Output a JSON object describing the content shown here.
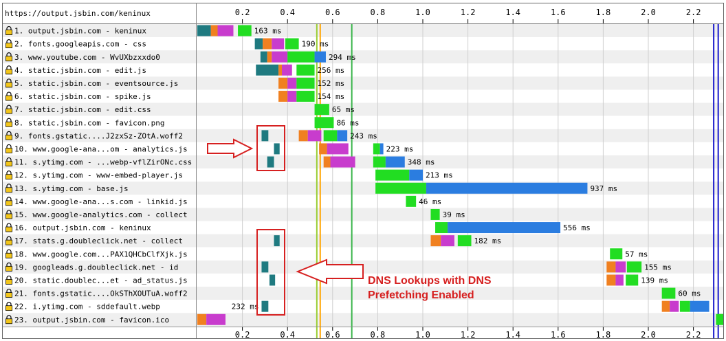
{
  "page_url": "https://output.jsbin.com/keninux",
  "chart_data": {
    "type": "waterfall",
    "x_unit": "s",
    "xlim": [
      0,
      2.3
    ],
    "x_ticks": [
      "0.2",
      "0.4",
      "0.6",
      "0.8",
      "1.0",
      "1.2",
      "1.4",
      "1.6",
      "1.8",
      "2.0",
      "2.2"
    ],
    "phase_colors": {
      "dns": "#1f7a80",
      "connect": "#f08020",
      "ssl": "#c83ccd",
      "ttfb": "#22dd22",
      "download": "#2b7de0"
    },
    "markers": [
      {
        "name": "start-render",
        "x": 0.53,
        "color": "#9acd32"
      },
      {
        "name": "dom-content-loaded",
        "x": 0.545,
        "color": "#ffa500"
      },
      {
        "name": "dom-interactive",
        "x": 0.685,
        "color": "#39b54a"
      },
      {
        "name": "document-complete",
        "x": 2.29,
        "color": "#1a1acc"
      },
      {
        "name": "fully-loaded",
        "x": 2.31,
        "color": "#1a1acc"
      }
    ],
    "requests": [
      {
        "label": "1. output.jsbin.com - keninux",
        "time": "163 ms",
        "phases": [
          {
            "t": "dns",
            "s": 0.0,
            "e": 0.06
          },
          {
            "t": "connect",
            "s": 0.06,
            "e": 0.09
          },
          {
            "t": "ssl",
            "s": 0.09,
            "e": 0.16
          },
          {
            "t": "ttfb",
            "s": 0.18,
            "e": 0.24
          }
        ]
      },
      {
        "label": "2. fonts.googleapis.com - css",
        "time": "190 ms",
        "phases": [
          {
            "t": "dns",
            "s": 0.255,
            "e": 0.29
          },
          {
            "t": "connect",
            "s": 0.29,
            "e": 0.33
          },
          {
            "t": "ssl",
            "s": 0.33,
            "e": 0.385
          },
          {
            "t": "ttfb",
            "s": 0.39,
            "e": 0.45
          }
        ]
      },
      {
        "label": "3. www.youtube.com - WvUXbzxxdo0",
        "time": "294 ms",
        "phases": [
          {
            "t": "dns",
            "s": 0.28,
            "e": 0.31
          },
          {
            "t": "connect",
            "s": 0.31,
            "e": 0.33
          },
          {
            "t": "ssl",
            "s": 0.33,
            "e": 0.4
          },
          {
            "t": "ttfb",
            "s": 0.4,
            "e": 0.52
          },
          {
            "t": "download",
            "s": 0.52,
            "e": 0.57
          }
        ]
      },
      {
        "label": "4. static.jsbin.com - edit.js",
        "time": "256 ms",
        "phases": [
          {
            "t": "dns",
            "s": 0.26,
            "e": 0.36
          },
          {
            "t": "connect",
            "s": 0.36,
            "e": 0.375
          },
          {
            "t": "ssl",
            "s": 0.375,
            "e": 0.42
          },
          {
            "t": "ttfb",
            "s": 0.44,
            "e": 0.52
          }
        ]
      },
      {
        "label": "5. static.jsbin.com - eventsource.js",
        "time": "152 ms",
        "phases": [
          {
            "t": "connect",
            "s": 0.36,
            "e": 0.4
          },
          {
            "t": "ssl",
            "s": 0.4,
            "e": 0.44
          },
          {
            "t": "ttfb",
            "s": 0.44,
            "e": 0.52
          }
        ]
      },
      {
        "label": "6. static.jsbin.com - spike.js",
        "time": "154 ms",
        "phases": [
          {
            "t": "connect",
            "s": 0.36,
            "e": 0.4
          },
          {
            "t": "ssl",
            "s": 0.4,
            "e": 0.44
          },
          {
            "t": "ttfb",
            "s": 0.44,
            "e": 0.52
          }
        ]
      },
      {
        "label": "7. static.jsbin.com - edit.css",
        "time": "65 ms",
        "phases": [
          {
            "t": "ttfb",
            "s": 0.52,
            "e": 0.585
          }
        ]
      },
      {
        "label": "8. static.jsbin.com - favicon.png",
        "time": "86 ms",
        "phases": [
          {
            "t": "ttfb",
            "s": 0.52,
            "e": 0.605
          }
        ]
      },
      {
        "label": "9. fonts.gstatic....J2zxSz-ZOtA.woff2",
        "time": "243 ms",
        "phases": [
          {
            "t": "dns",
            "s": 0.285,
            "e": 0.315
          },
          {
            "t": "connect",
            "s": 0.45,
            "e": 0.49
          },
          {
            "t": "ssl",
            "s": 0.49,
            "e": 0.55
          },
          {
            "t": "ttfb",
            "s": 0.56,
            "e": 0.62
          },
          {
            "t": "download",
            "s": 0.62,
            "e": 0.665
          }
        ]
      },
      {
        "label": "10. www.google-ana...om - analytics.js",
        "time": "223 ms",
        "phases": [
          {
            "t": "dns",
            "s": 0.34,
            "e": 0.365
          },
          {
            "t": "connect",
            "s": 0.54,
            "e": 0.575
          },
          {
            "t": "ssl",
            "s": 0.575,
            "e": 0.67
          },
          {
            "t": "ttfb",
            "s": 0.78,
            "e": 0.81
          },
          {
            "t": "download",
            "s": 0.81,
            "e": 0.825
          }
        ]
      },
      {
        "label": "11. s.ytimg.com - ...webp-vflZirONc.css",
        "time": "348 ms",
        "phases": [
          {
            "t": "dns",
            "s": 0.31,
            "e": 0.34
          },
          {
            "t": "connect",
            "s": 0.56,
            "e": 0.59
          },
          {
            "t": "ssl",
            "s": 0.59,
            "e": 0.7
          },
          {
            "t": "ttfb",
            "s": 0.78,
            "e": 0.835
          },
          {
            "t": "download",
            "s": 0.835,
            "e": 0.92
          }
        ]
      },
      {
        "label": "12. s.ytimg.com - www-embed-player.js",
        "time": "213 ms",
        "phases": [
          {
            "t": "ttfb",
            "s": 0.79,
            "e": 0.94
          },
          {
            "t": "download",
            "s": 0.94,
            "e": 1.0
          }
        ]
      },
      {
        "label": "13. s.ytimg.com - base.js",
        "time": "937 ms",
        "phases": [
          {
            "t": "ttfb",
            "s": 0.79,
            "e": 1.015
          },
          {
            "t": "download",
            "s": 1.015,
            "e": 1.73
          }
        ]
      },
      {
        "label": "14. www.google-ana...s.com - linkid.js",
        "time": "46 ms",
        "phases": [
          {
            "t": "ttfb",
            "s": 0.925,
            "e": 0.97
          }
        ]
      },
      {
        "label": "15. www.google-analytics.com - collect",
        "time": "39 ms",
        "phases": [
          {
            "t": "ttfb",
            "s": 1.035,
            "e": 1.075
          }
        ]
      },
      {
        "label": "16. output.jsbin.com - keninux",
        "time": "556 ms",
        "phases": [
          {
            "t": "ttfb",
            "s": 1.055,
            "e": 1.11
          },
          {
            "t": "download",
            "s": 1.11,
            "e": 1.61
          }
        ]
      },
      {
        "label": "17. stats.g.doubleclick.net - collect",
        "time": "182 ms",
        "phases": [
          {
            "t": "dns",
            "s": 0.34,
            "e": 0.365
          },
          {
            "t": "connect",
            "s": 1.035,
            "e": 1.08
          },
          {
            "t": "ssl",
            "s": 1.08,
            "e": 1.14
          },
          {
            "t": "ttfb",
            "s": 1.155,
            "e": 1.215
          }
        ]
      },
      {
        "label": "18. www.google.com...PAX1QHCbClfXjk.js",
        "time": "57 ms",
        "phases": [
          {
            "t": "ttfb",
            "s": 1.83,
            "e": 1.885
          }
        ]
      },
      {
        "label": "19. googleads.g.doubleclick.net - id",
        "time": "155 ms",
        "phases": [
          {
            "t": "dns",
            "s": 0.285,
            "e": 0.315
          },
          {
            "t": "connect",
            "s": 1.815,
            "e": 1.855
          },
          {
            "t": "ssl",
            "s": 1.855,
            "e": 1.9
          },
          {
            "t": "ttfb",
            "s": 1.905,
            "e": 1.97
          }
        ]
      },
      {
        "label": "20. static.doublec...et - ad_status.js",
        "time": "139 ms",
        "phases": [
          {
            "t": "dns",
            "s": 0.32,
            "e": 0.345
          },
          {
            "t": "connect",
            "s": 1.815,
            "e": 1.855
          },
          {
            "t": "ssl",
            "s": 1.855,
            "e": 1.89
          },
          {
            "t": "ttfb",
            "s": 1.9,
            "e": 1.955
          }
        ]
      },
      {
        "label": "21. fonts.gstatic....OkSThXOUTuA.woff2",
        "time": "60 ms",
        "phases": [
          {
            "t": "ttfb",
            "s": 2.06,
            "e": 2.12
          }
        ]
      },
      {
        "label": "22. i.ytimg.com - sddefault.webp",
        "time": "232 ms",
        "time_left": true,
        "phases": [
          {
            "t": "dns",
            "s": 0.285,
            "e": 0.315
          },
          {
            "t": "connect",
            "s": 2.06,
            "e": 2.095
          },
          {
            "t": "ssl",
            "s": 2.095,
            "e": 2.135
          },
          {
            "t": "ttfb",
            "s": 2.14,
            "e": 2.185
          },
          {
            "t": "download",
            "s": 2.185,
            "e": 2.27
          }
        ]
      },
      {
        "label": "23. output.jsbin.com - favicon.ico",
        "time": "",
        "phases": [
          {
            "t": "connect",
            "s": 0.0,
            "e": 0.04
          },
          {
            "t": "ssl",
            "s": 0.04,
            "e": 0.125
          },
          {
            "t": "ttfb",
            "s": 2.3,
            "e": 2.36
          }
        ]
      }
    ]
  },
  "annotation": {
    "line1": "DNS Lookups with DNS",
    "line2": "Prefetching Enabled"
  }
}
